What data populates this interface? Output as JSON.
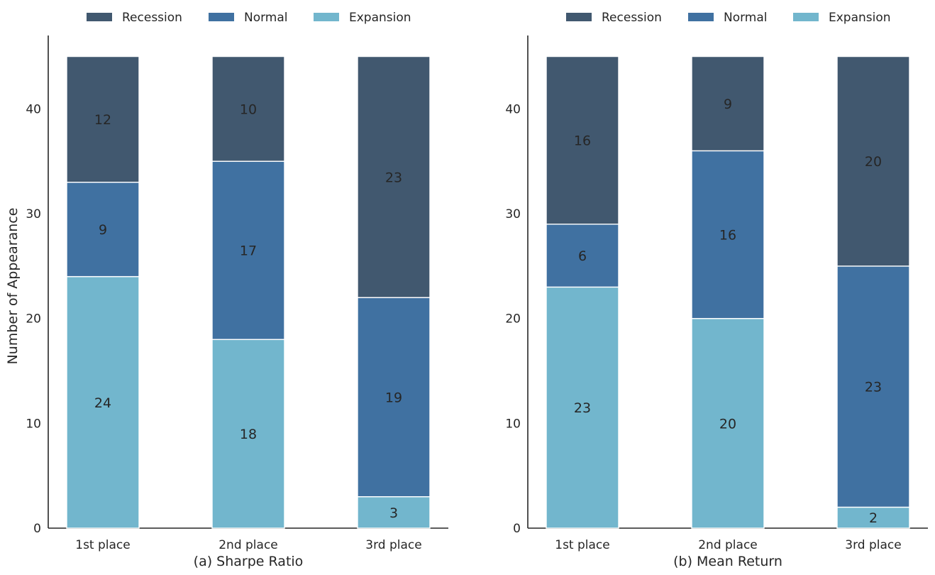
{
  "chart_data": [
    {
      "type": "bar",
      "stacked": true,
      "xlabel": "(a) Sharpe Ratio",
      "ylabel": "Number of Appearance",
      "categories": [
        "1st place",
        "2nd place",
        "3rd place"
      ],
      "ylim": [
        0,
        47
      ],
      "yticks": [
        0,
        10,
        20,
        30,
        40
      ],
      "legend": "top-center",
      "grid": false,
      "series": [
        {
          "name": "Expansion",
          "color": "#72b6cd",
          "values": [
            24,
            18,
            3
          ]
        },
        {
          "name": "Normal",
          "color": "#4071a1",
          "values": [
            9,
            17,
            19
          ]
        },
        {
          "name": "Recession",
          "color": "#41586f",
          "values": [
            12,
            10,
            23
          ]
        }
      ]
    },
    {
      "type": "bar",
      "stacked": true,
      "xlabel": "(b) Mean Return",
      "ylabel": "",
      "categories": [
        "1st place",
        "2nd place",
        "3rd place"
      ],
      "ylim": [
        0,
        47
      ],
      "yticks": [
        0,
        10,
        20,
        30,
        40
      ],
      "legend": "top-center",
      "grid": false,
      "series": [
        {
          "name": "Expansion",
          "color": "#72b6cd",
          "values": [
            23,
            20,
            2
          ]
        },
        {
          "name": "Normal",
          "color": "#4071a1",
          "values": [
            6,
            16,
            23
          ]
        },
        {
          "name": "Recession",
          "color": "#41586f",
          "values": [
            16,
            9,
            20
          ]
        }
      ]
    }
  ],
  "legend_order": [
    "Recession",
    "Normal",
    "Expansion"
  ]
}
